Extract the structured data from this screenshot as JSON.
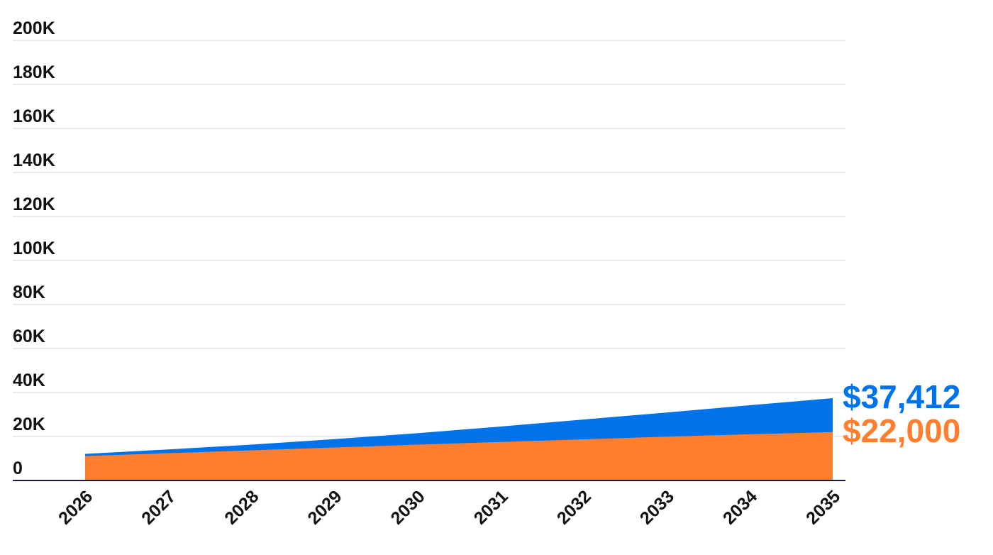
{
  "chart_data": {
    "type": "area",
    "stacked": false,
    "x": [
      2026,
      2027,
      2028,
      2029,
      2030,
      2031,
      2032,
      2033,
      2034,
      2035
    ],
    "x_tick_labels": [
      "2026",
      "2027",
      "2028",
      "2029",
      "2030",
      "2031",
      "2032",
      "2033",
      "2034",
      "2035"
    ],
    "y_tick_values": [
      0,
      20000,
      40000,
      60000,
      80000,
      100000,
      120000,
      140000,
      160000,
      180000,
      200000
    ],
    "y_tick_labels": [
      "0",
      "20K",
      "40K",
      "60K",
      "80K",
      "100K",
      "120K",
      "140K",
      "160K",
      "180K",
      "200K"
    ],
    "ylim": [
      0,
      200000
    ],
    "grid": true,
    "series": [
      {
        "values": [
          12100,
          14100,
          16300,
          18800,
          21500,
          24500,
          27700,
          30900,
          34200,
          37412
        ],
        "color": "#0073ea",
        "end_label": "$37,412"
      },
      {
        "values": [
          11100,
          12400,
          13700,
          15000,
          16300,
          17500,
          18700,
          19900,
          21000,
          22000
        ],
        "color": "#ff7f2f",
        "end_label": "$22,000"
      }
    ],
    "title": "",
    "xlabel": "",
    "ylabel": ""
  }
}
